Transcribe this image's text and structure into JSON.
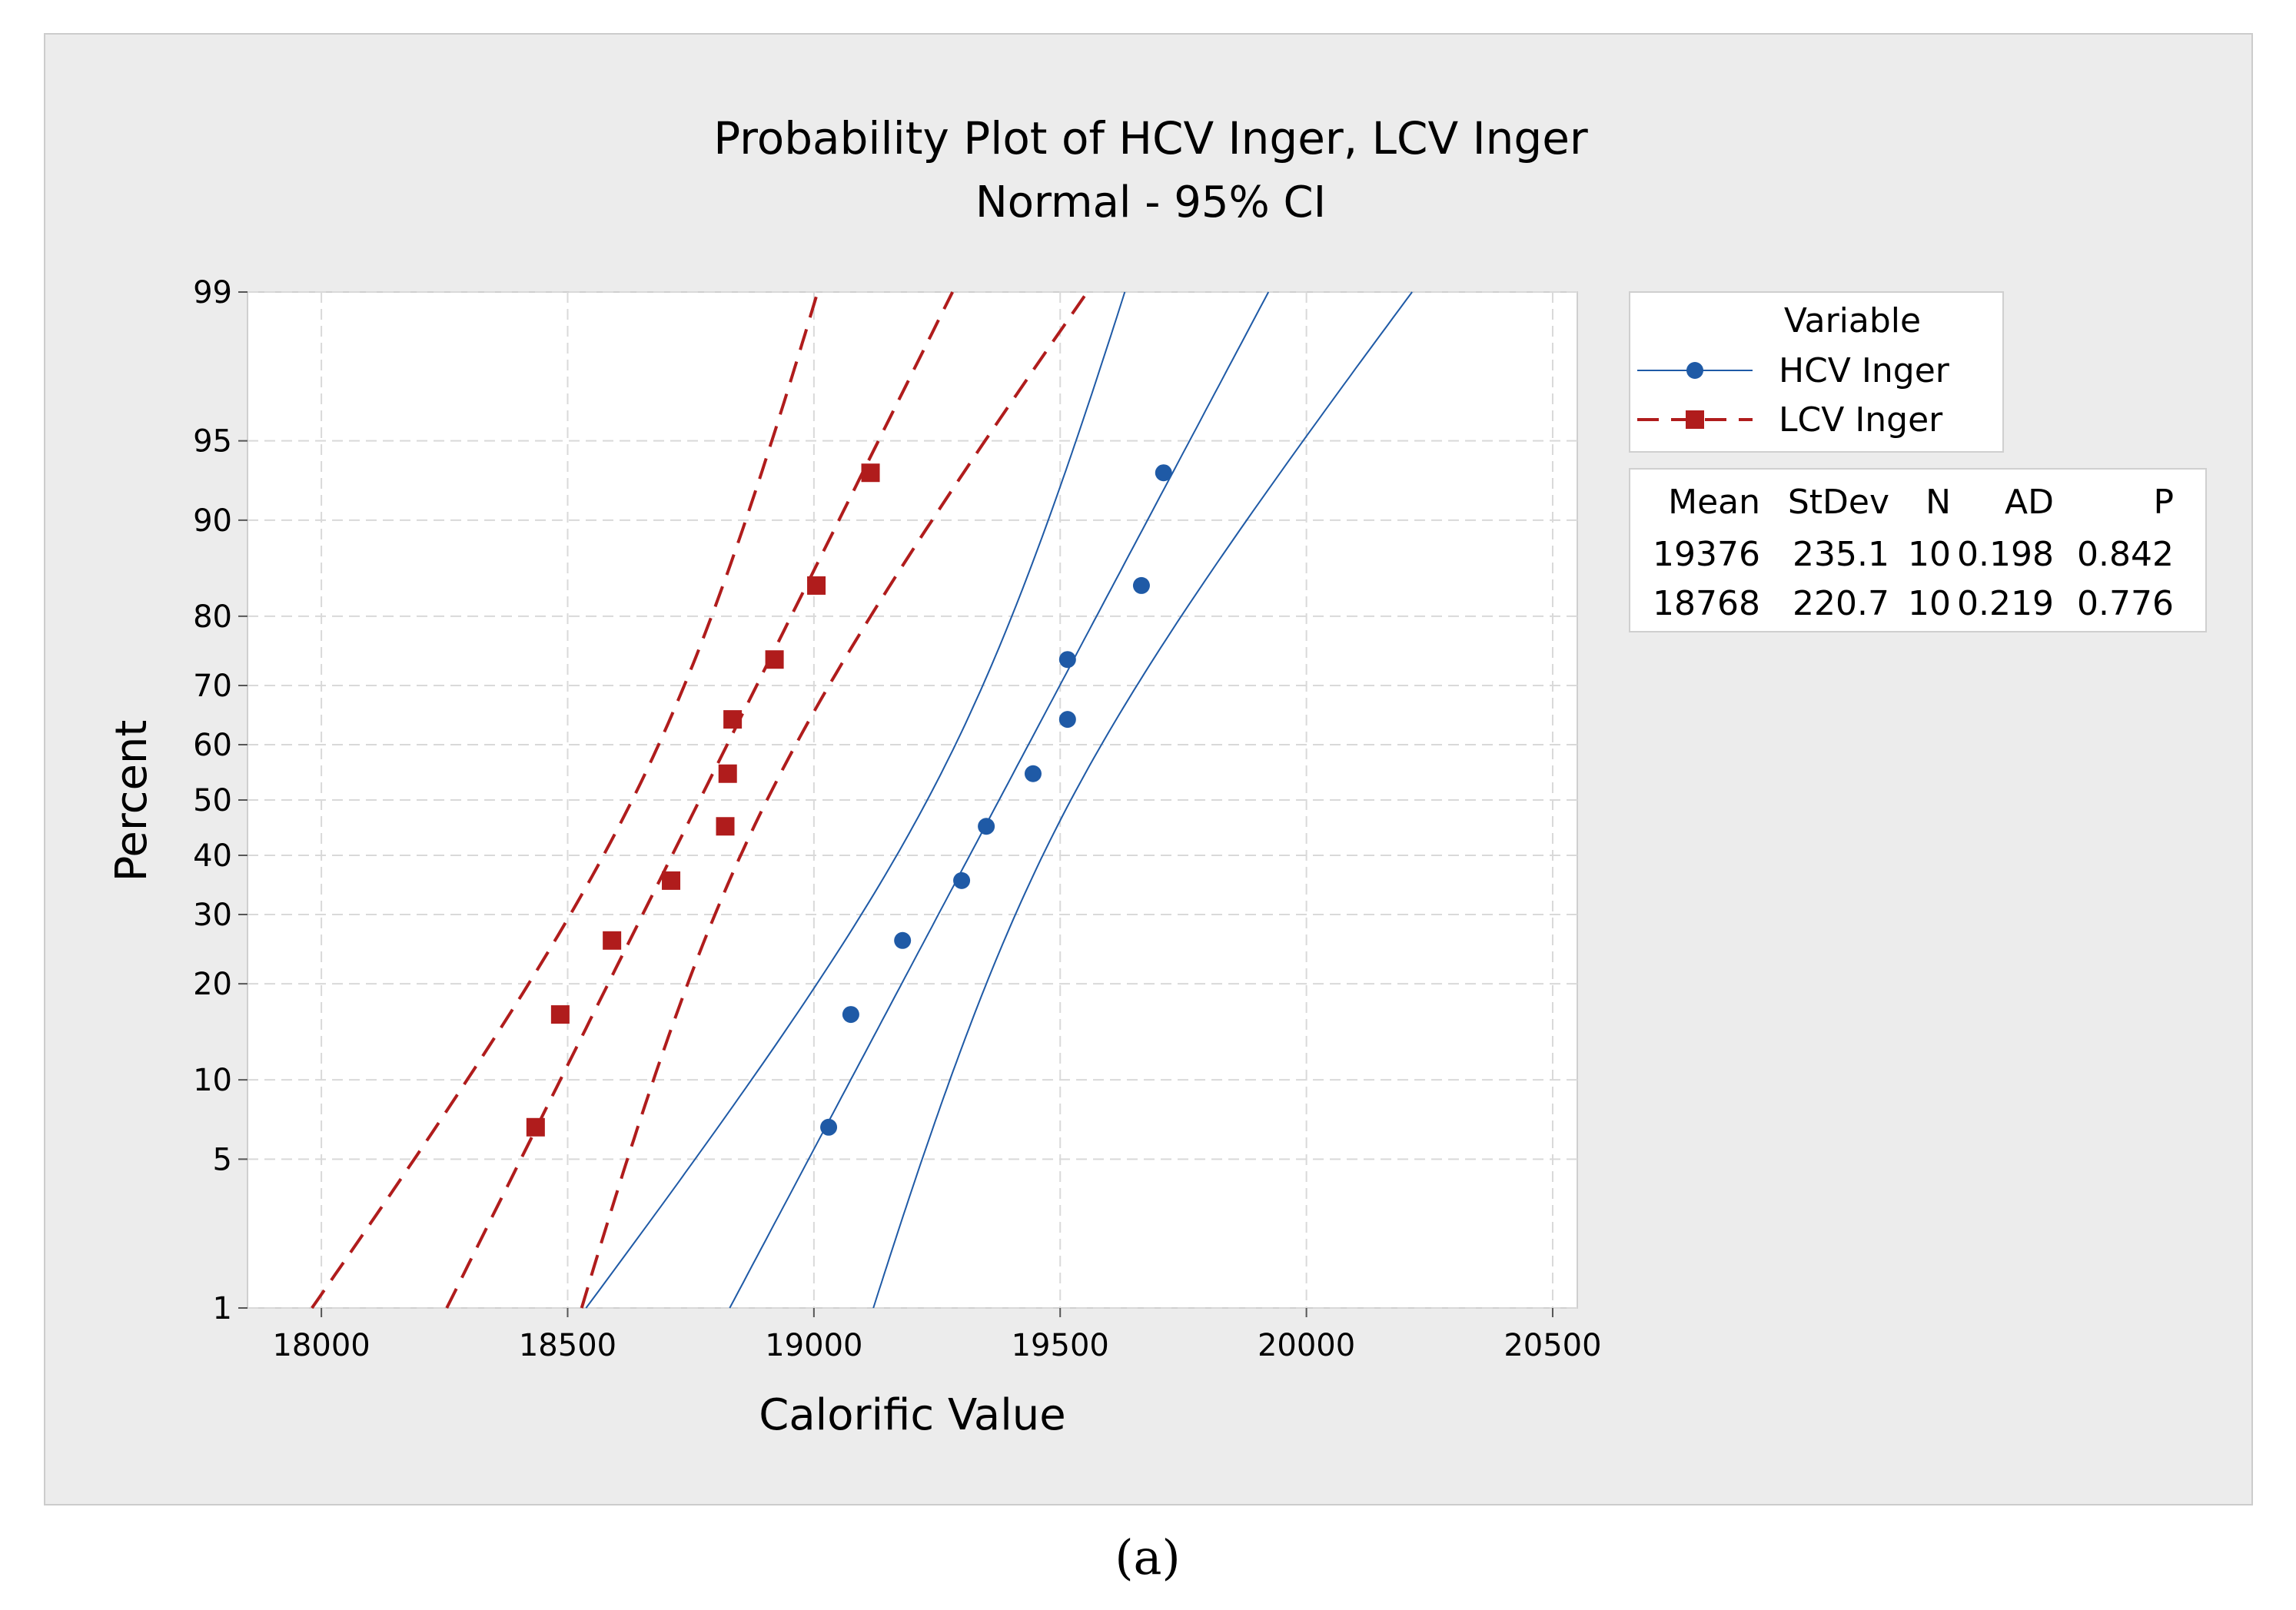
{
  "caption": "(a)",
  "chart_data": {
    "type": "scatter",
    "title": "Probability Plot of HCV Inger, LCV Inger",
    "subtitle": "Normal - 95% CI",
    "xlabel": "Calorific Value",
    "ylabel": "Percent",
    "xlim": [
      17850,
      20550
    ],
    "xticks": [
      18000,
      18500,
      19000,
      19500,
      20000,
      20500
    ],
    "yscale": "normal-probability",
    "ylim": [
      1,
      99
    ],
    "yticks": [
      1,
      5,
      10,
      20,
      30,
      40,
      50,
      60,
      70,
      80,
      90,
      95,
      99
    ],
    "grid": true,
    "legend": {
      "title": "Variable",
      "position": "right"
    },
    "series": [
      {
        "name": "HCV Inger",
        "color": "#1f5aa6",
        "marker": "circle",
        "line_style": "solid",
        "mean": 19376,
        "stdev": 235.1,
        "n": 10,
        "points": [
          {
            "x": 19030,
            "y": 6.7
          },
          {
            "x": 19075,
            "y": 16.3
          },
          {
            "x": 19180,
            "y": 26.0
          },
          {
            "x": 19300,
            "y": 35.6
          },
          {
            "x": 19350,
            "y": 45.2
          },
          {
            "x": 19445,
            "y": 54.8
          },
          {
            "x": 19515,
            "y": 64.4
          },
          {
            "x": 19515,
            "y": 74.0
          },
          {
            "x": 19665,
            "y": 83.7
          },
          {
            "x": 19710,
            "y": 93.3
          }
        ]
      },
      {
        "name": "LCV Inger",
        "color": "#b01c1c",
        "marker": "square",
        "line_style": "dashed",
        "mean": 18768,
        "stdev": 220.7,
        "n": 10,
        "points": [
          {
            "x": 18435,
            "y": 6.7
          },
          {
            "x": 18485,
            "y": 16.3
          },
          {
            "x": 18590,
            "y": 26.0
          },
          {
            "x": 18710,
            "y": 35.6
          },
          {
            "x": 18820,
            "y": 45.2
          },
          {
            "x": 18825,
            "y": 54.8
          },
          {
            "x": 18835,
            "y": 64.4
          },
          {
            "x": 18920,
            "y": 74.0
          },
          {
            "x": 19005,
            "y": 83.7
          },
          {
            "x": 19115,
            "y": 93.3
          }
        ]
      }
    ],
    "stats_table": {
      "headers": [
        "Mean",
        "StDev",
        "N",
        "AD",
        "P"
      ],
      "rows": [
        [
          "19376",
          "235.1",
          "10",
          "0.198",
          "0.842"
        ],
        [
          "18768",
          "220.7",
          "10",
          "0.219",
          "0.776"
        ]
      ]
    }
  }
}
